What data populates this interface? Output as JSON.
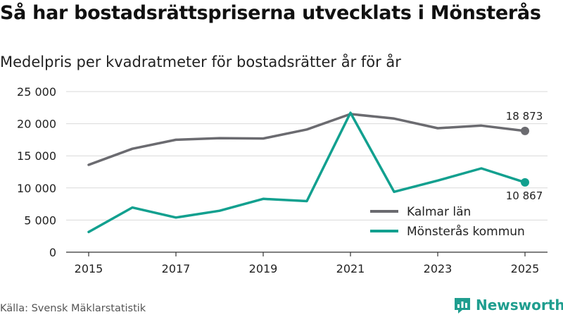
{
  "title": "Så har bostadsrättspriserna utvecklats i Mönsterås",
  "subtitle": "Medelpris per kvadratmeter för bostadsrätter år för år",
  "source": "Källa: Svensk Mäklarstatistik",
  "brand": {
    "name": "Newsworthy",
    "icon": "newsworthy-logo-icon",
    "color": "#1f9e8f"
  },
  "chart_data": {
    "type": "line",
    "title": "Så har bostadsrättspriserna utvecklats i Mönsterås",
    "subtitle": "Medelpris per kvadratmeter för bostadsrätter år för år",
    "xlabel": "",
    "ylabel": "",
    "x": [
      2015,
      2016,
      2017,
      2018,
      2019,
      2020,
      2021,
      2022,
      2023,
      2024,
      2025
    ],
    "xticks": [
      "2015",
      "2017",
      "2019",
      "2021",
      "2023",
      "2025"
    ],
    "xlim": [
      2015,
      2025
    ],
    "ylim": [
      0,
      25000
    ],
    "yticks": [
      "0",
      "5 000",
      "10 000",
      "15 000",
      "20 000",
      "25 000"
    ],
    "grid": true,
    "legend_position": "bottom-right",
    "series": [
      {
        "name": "Kalmar län",
        "color": "#6b6b70",
        "values": [
          13600,
          16100,
          17500,
          17750,
          17700,
          19100,
          21500,
          20800,
          19300,
          19700,
          18873
        ],
        "end_label": "18 873"
      },
      {
        "name": "Mönsterås kommun",
        "color": "#12a08f",
        "values": [
          3150,
          6950,
          5400,
          6450,
          8300,
          7950,
          21700,
          9400,
          11150,
          13050,
          10867
        ],
        "end_label": "10 867"
      }
    ]
  }
}
